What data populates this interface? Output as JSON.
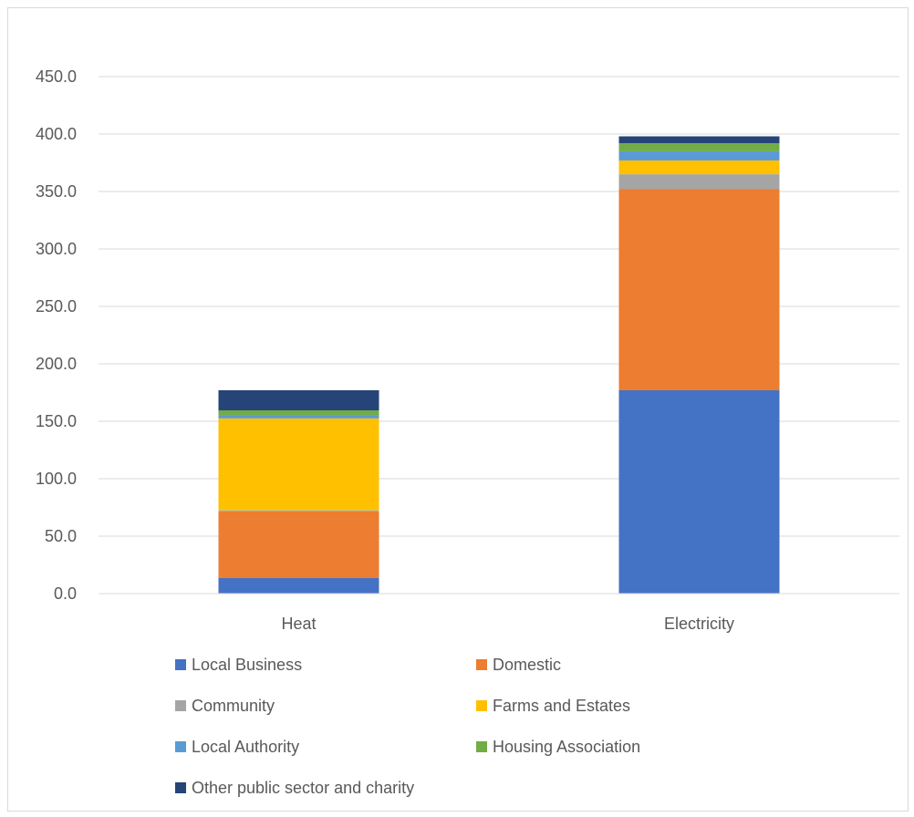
{
  "chart_data": {
    "type": "bar",
    "stacked": true,
    "title": "",
    "xlabel": "",
    "ylabel": "",
    "categories": [
      "Heat",
      "Electricity"
    ],
    "ylim": [
      0,
      450
    ],
    "yticks": [
      "0.0",
      "50.0",
      "100.0",
      "150.0",
      "200.0",
      "250.0",
      "300.0",
      "350.0",
      "400.0",
      "450.0"
    ],
    "grid": true,
    "legend_position": "bottom",
    "series": [
      {
        "name": "Local Business",
        "color": "#4472C4",
        "values": [
          13.5,
          177.0
        ]
      },
      {
        "name": "Domestic",
        "color": "#ED7D31",
        "values": [
          58.0,
          175.0
        ]
      },
      {
        "name": "Community",
        "color": "#A5A5A5",
        "values": [
          1.0,
          13.0
        ]
      },
      {
        "name": "Farms and Estates",
        "color": "#FFC000",
        "values": [
          80.0,
          12.0
        ]
      },
      {
        "name": "Local Authority",
        "color": "#5B9BD5",
        "values": [
          3.0,
          8.0
        ]
      },
      {
        "name": "Housing Association",
        "color": "#70AD47",
        "values": [
          4.0,
          7.0
        ]
      },
      {
        "name": "Other public sector and charity",
        "color": "#264478",
        "values": [
          17.5,
          6.0
        ]
      }
    ]
  }
}
